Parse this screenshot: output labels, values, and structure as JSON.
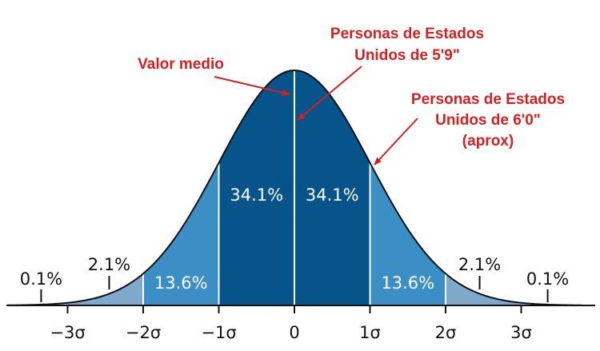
{
  "chart_data": {
    "type": "area",
    "distribution": "normal",
    "mean": 0,
    "sd": 1,
    "x_range": [
      -4,
      4
    ],
    "x_ticks": [
      "−3σ",
      "−2σ",
      "−1σ",
      "0",
      "1σ",
      "2σ",
      "3σ"
    ],
    "regions": [
      {
        "from": -4,
        "to": -3,
        "percent": "0.1%",
        "color": "#a9c6dc"
      },
      {
        "from": -3,
        "to": -2,
        "percent": "2.1%",
        "color": "#7ea9cb"
      },
      {
        "from": -2,
        "to": -1,
        "percent": "13.6%",
        "color": "#3b8fc4"
      },
      {
        "from": -1,
        "to": 0,
        "percent": "34.1%",
        "color": "#07548a"
      },
      {
        "from": 0,
        "to": 1,
        "percent": "34.1%",
        "color": "#07548a"
      },
      {
        "from": 1,
        "to": 2,
        "percent": "13.6%",
        "color": "#3b8fc4"
      },
      {
        "from": 2,
        "to": 3,
        "percent": "2.1%",
        "color": "#7ea9cb"
      },
      {
        "from": 3,
        "to": 4,
        "percent": "0.1%",
        "color": "#a9c6dc"
      }
    ],
    "annotations": [
      {
        "lines": [
          "Valor medio"
        ],
        "target_x": 0
      },
      {
        "lines": [
          "Personas de Estados",
          "Unidos de 5'9\""
        ],
        "target_x": 0
      },
      {
        "lines": [
          "Personas de Estados",
          "Unidos de 6'0\"",
          "(aprox)"
        ],
        "target_x": 1
      }
    ],
    "annotation_color": "#d71f1f"
  }
}
